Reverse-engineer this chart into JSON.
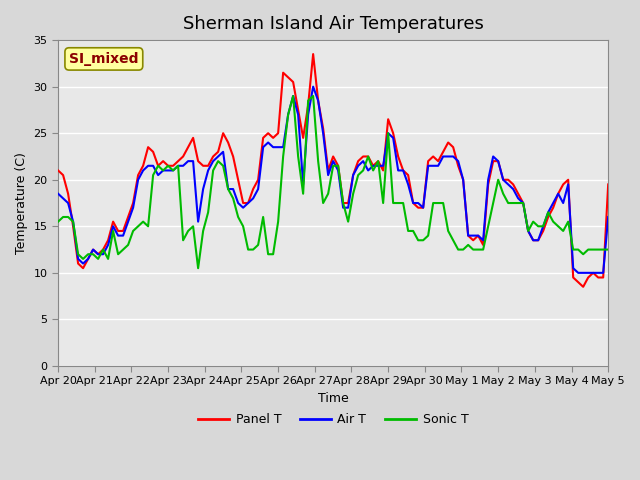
{
  "title": "Sherman Island Air Temperatures",
  "xlabel": "Time",
  "ylabel": "Temperature (C)",
  "annotation": "SI_mixed",
  "annotation_color": "#8B0000",
  "annotation_bg": "#FFFFA0",
  "ylim": [
    0,
    35
  ],
  "xlim": [
    0,
    15
  ],
  "yticks": [
    0,
    5,
    10,
    15,
    20,
    25,
    30,
    35
  ],
  "xtick_labels": [
    "Apr 20",
    "Apr 21",
    "Apr 22",
    "Apr 23",
    "Apr 24",
    "Apr 25",
    "Apr 26",
    "Apr 27",
    "Apr 28",
    "Apr 29",
    "Apr 30",
    "May 1",
    "May 2",
    "May 3",
    "May 4",
    "May 5"
  ],
  "background_color": "#E8E8E8",
  "plot_bg": "#F0F0F0",
  "grid_color": "#FFFFFF",
  "panel_t": [
    21.0,
    20.5,
    18.5,
    15.0,
    11.0,
    10.5,
    11.5,
    12.5,
    12.0,
    12.5,
    13.5,
    15.5,
    14.5,
    14.5,
    16.0,
    17.5,
    20.5,
    21.5,
    23.5,
    23.0,
    21.5,
    22.0,
    21.5,
    21.5,
    22.0,
    22.5,
    23.5,
    24.5,
    22.0,
    21.5,
    21.5,
    22.5,
    23.0,
    25.0,
    24.0,
    22.5,
    20.0,
    17.5,
    17.5,
    19.0,
    20.0,
    24.5,
    25.0,
    24.5,
    25.0,
    31.5,
    31.0,
    30.5,
    27.5,
    24.5,
    28.0,
    33.5,
    28.5,
    25.5,
    21.0,
    22.5,
    21.5,
    17.5,
    17.5,
    20.5,
    22.0,
    22.5,
    22.5,
    21.5,
    22.0,
    21.0,
    26.5,
    25.0,
    22.5,
    21.0,
    20.5,
    17.5,
    17.0,
    17.0,
    22.0,
    22.5,
    22.0,
    23.0,
    24.0,
    23.5,
    21.5,
    20.0,
    14.0,
    13.5,
    14.0,
    13.0,
    19.5,
    22.0,
    22.0,
    20.0,
    20.0,
    19.5,
    18.5,
    17.5,
    14.5,
    13.5,
    13.5,
    14.5,
    16.0,
    17.0,
    18.5,
    19.5,
    20.0,
    9.5,
    9.0,
    8.5,
    9.5,
    10.0,
    9.5,
    9.5,
    19.5
  ],
  "air_t": [
    18.5,
    18.0,
    17.5,
    15.5,
    11.5,
    11.0,
    11.5,
    12.5,
    12.0,
    12.0,
    13.0,
    15.0,
    14.0,
    14.0,
    15.5,
    17.0,
    20.0,
    21.0,
    21.5,
    21.5,
    20.5,
    21.0,
    21.0,
    21.0,
    21.5,
    21.5,
    22.0,
    22.0,
    15.5,
    19.0,
    21.0,
    22.0,
    22.5,
    23.0,
    19.0,
    19.0,
    17.5,
    17.0,
    17.5,
    18.0,
    19.0,
    23.5,
    24.0,
    23.5,
    23.5,
    23.5,
    27.0,
    29.0,
    27.0,
    19.5,
    27.0,
    30.0,
    28.5,
    25.0,
    20.5,
    22.0,
    21.0,
    17.0,
    17.0,
    20.5,
    21.5,
    22.0,
    21.0,
    21.5,
    21.5,
    21.5,
    25.0,
    24.5,
    21.0,
    21.0,
    19.5,
    17.5,
    17.5,
    17.0,
    21.5,
    21.5,
    21.5,
    22.5,
    22.5,
    22.5,
    22.0,
    20.0,
    14.0,
    14.0,
    14.0,
    13.5,
    20.0,
    22.5,
    22.0,
    20.0,
    19.5,
    19.0,
    18.0,
    17.5,
    14.5,
    13.5,
    13.5,
    15.0,
    16.5,
    17.5,
    18.5,
    17.5,
    19.5,
    10.5,
    10.0,
    10.0,
    10.0,
    10.0,
    10.0,
    10.0,
    16.0
  ],
  "sonic_t": [
    15.5,
    16.0,
    16.0,
    15.5,
    12.0,
    11.5,
    12.0,
    12.0,
    11.5,
    12.5,
    11.5,
    14.5,
    12.0,
    12.5,
    13.0,
    14.5,
    15.0,
    15.5,
    15.0,
    20.5,
    21.5,
    21.0,
    21.5,
    21.0,
    21.5,
    13.5,
    14.5,
    15.0,
    10.5,
    14.5,
    16.5,
    21.0,
    22.0,
    21.5,
    19.0,
    18.0,
    16.0,
    15.0,
    12.5,
    12.5,
    13.0,
    16.0,
    12.0,
    12.0,
    15.5,
    22.5,
    27.0,
    29.0,
    22.5,
    18.5,
    28.5,
    29.0,
    22.0,
    17.5,
    18.5,
    21.5,
    21.5,
    17.5,
    15.5,
    18.5,
    20.5,
    21.0,
    22.5,
    21.0,
    22.0,
    17.5,
    25.0,
    17.5,
    17.5,
    17.5,
    14.5,
    14.5,
    13.5,
    13.5,
    14.0,
    17.5,
    17.5,
    17.5,
    14.5,
    13.5,
    12.5,
    12.5,
    13.0,
    12.5,
    12.5,
    12.5,
    15.0,
    17.5,
    20.0,
    18.5,
    17.5,
    17.5,
    17.5,
    17.5,
    14.5,
    15.5,
    15.0,
    15.0,
    16.5,
    15.5,
    15.0,
    14.5,
    15.5,
    12.5,
    12.5,
    12.0,
    12.5,
    12.5,
    12.5,
    12.5,
    12.5
  ],
  "panel_color": "#FF0000",
  "air_color": "#0000FF",
  "sonic_color": "#00BB00",
  "line_width": 1.5
}
